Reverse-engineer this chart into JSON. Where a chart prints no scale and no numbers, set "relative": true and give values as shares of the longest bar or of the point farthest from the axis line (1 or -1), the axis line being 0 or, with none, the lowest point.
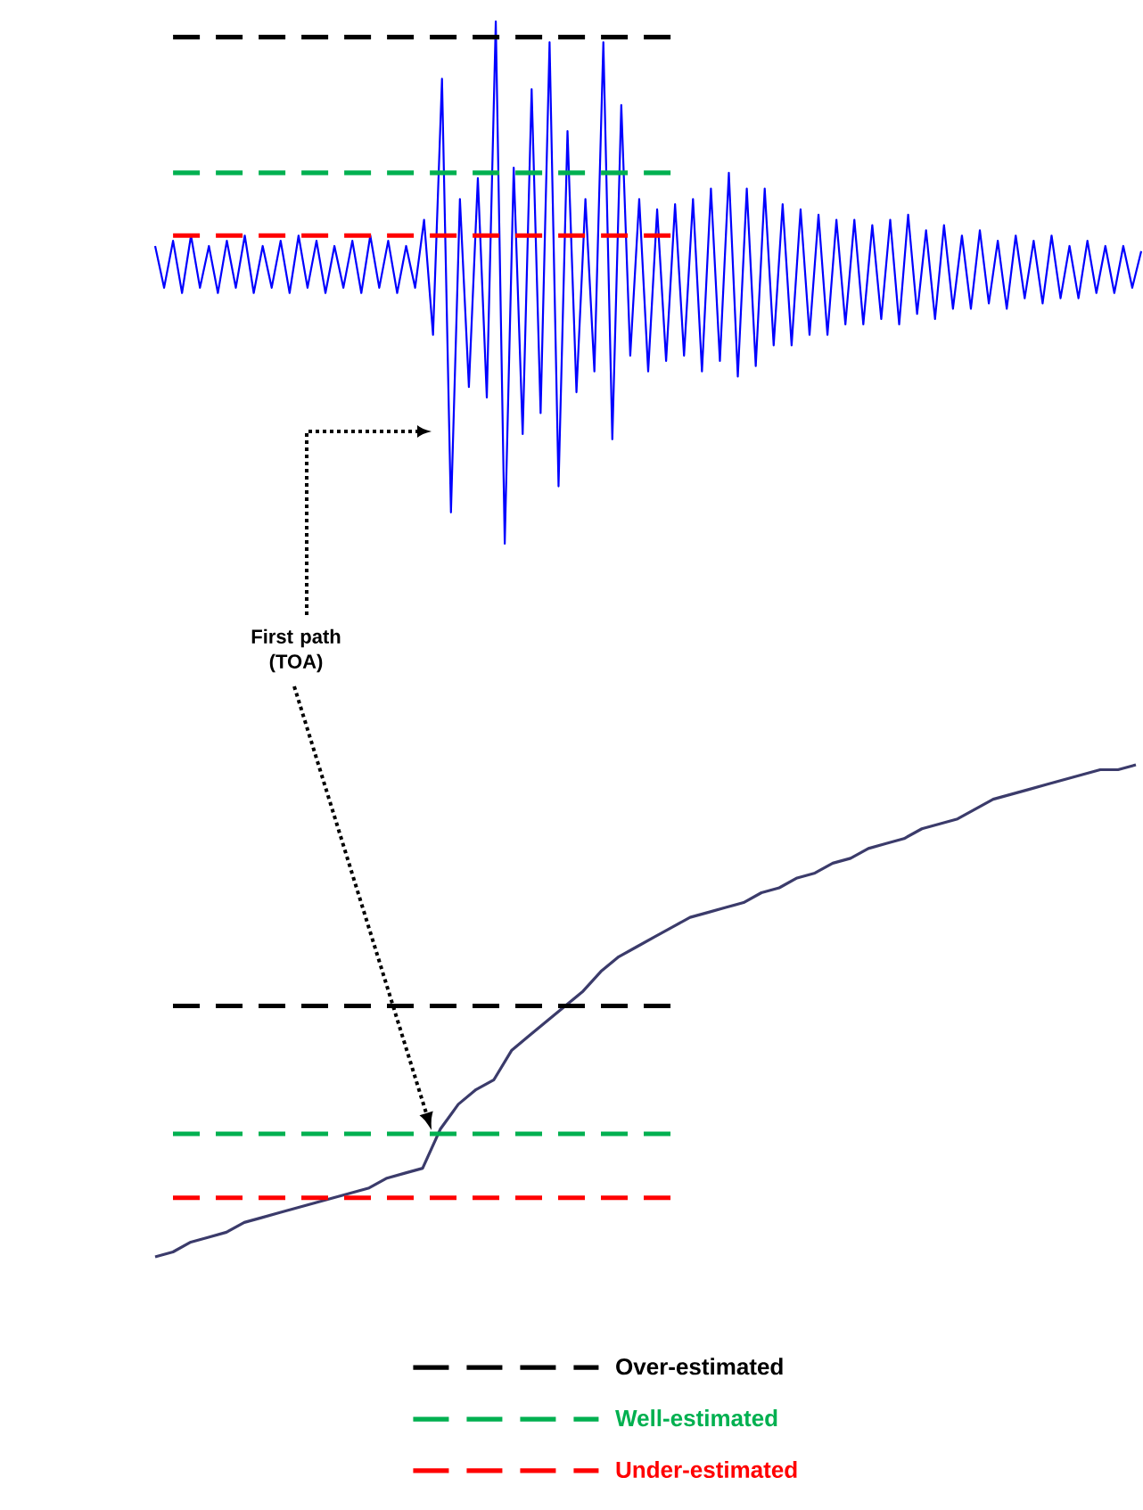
{
  "chart_data": [
    {
      "type": "line",
      "relative": true,
      "categories": [
        null,
        null,
        null,
        null,
        null,
        null,
        null,
        null,
        null,
        null,
        null,
        null,
        null,
        null,
        null,
        null,
        null,
        null,
        null,
        null,
        null,
        null,
        null,
        null,
        null,
        null,
        null,
        null,
        null,
        null,
        null,
        null,
        null,
        null,
        null,
        null,
        null,
        null,
        null,
        null,
        null,
        null,
        null,
        null,
        null,
        null,
        null,
        null,
        null,
        null,
        null,
        null,
        null,
        null,
        null,
        null,
        null,
        null,
        null,
        null,
        null,
        null,
        null,
        null,
        null,
        null,
        null,
        null,
        null,
        null,
        null,
        null,
        null,
        null,
        null,
        null,
        null,
        null,
        null,
        null,
        null,
        null,
        null,
        null,
        null,
        null,
        null,
        null,
        null,
        null,
        null,
        null,
        null,
        null,
        null,
        null,
        null,
        null,
        null,
        null,
        null,
        null,
        null,
        null,
        null,
        null,
        null,
        null,
        null,
        null,
        null
      ],
      "annotations": [
        "First path (TOA)"
      ],
      "series": [
        {
          "color": "#0000ff",
          "values": [
            0.57,
            0.49,
            0.58,
            0.48,
            0.59,
            0.49,
            0.57,
            0.48,
            0.58,
            0.49,
            0.59,
            0.48,
            0.57,
            0.49,
            0.58,
            0.48,
            0.59,
            0.49,
            0.58,
            0.48,
            0.57,
            0.49,
            0.58,
            0.48,
            0.59,
            0.49,
            0.58,
            0.48,
            0.57,
            0.49,
            0.62,
            0.4,
            0.89,
            0.06,
            0.66,
            0.3,
            0.7,
            0.28,
            1.0,
            0.0,
            0.72,
            0.21,
            0.87,
            0.25,
            0.96,
            0.11,
            0.79,
            0.29,
            0.66,
            0.33,
            0.96,
            0.2,
            0.84,
            0.36,
            0.66,
            0.33,
            0.64,
            0.35,
            0.65,
            0.36,
            0.66,
            0.33,
            0.68,
            0.35,
            0.71,
            0.32,
            0.68,
            0.34,
            0.68,
            0.38,
            0.65,
            0.38,
            0.64,
            0.4,
            0.63,
            0.4,
            0.62,
            0.42,
            0.62,
            0.42,
            0.61,
            0.43,
            0.62,
            0.42,
            0.63,
            0.44,
            0.6,
            0.43,
            0.61,
            0.45,
            0.59,
            0.45,
            0.6,
            0.46,
            0.58,
            0.45,
            0.59,
            0.47,
            0.58,
            0.46,
            0.59,
            0.47,
            0.57,
            0.47,
            0.58,
            0.48,
            0.57,
            0.48,
            0.57,
            0.49,
            0.56
          ]
        },
        {
          "color": "#000000",
          "line_style": "dashed",
          "values": [
            null,
            null,
            0.97,
            0.97,
            0.97,
            0.97,
            0.97,
            0.97,
            0.97,
            0.97,
            0.97,
            0.97,
            0.97,
            0.97,
            0.97,
            0.97,
            0.97,
            0.97,
            0.97,
            0.97,
            0.97,
            0.97,
            0.97,
            0.97,
            0.97,
            0.97,
            0.97,
            0.97,
            0.97,
            0.97,
            0.97,
            0.97,
            0.97,
            0.97,
            0.97,
            0.97,
            0.97,
            0.97,
            0.97,
            0.97,
            0.97,
            0.97,
            0.97,
            0.97,
            0.97,
            0.97,
            0.97,
            0.97,
            0.97,
            0.97,
            0.97,
            0.97,
            0.97,
            0.97,
            0.97,
            0.97,
            0.97,
            0.97,
            0.97,
            null,
            null,
            null,
            null,
            null,
            null,
            null,
            null,
            null,
            null,
            null,
            null,
            null,
            null,
            null,
            null,
            null,
            null,
            null,
            null,
            null,
            null,
            null,
            null,
            null,
            null,
            null,
            null,
            null,
            null,
            null,
            null,
            null,
            null,
            null,
            null,
            null,
            null,
            null,
            null,
            null,
            null,
            null,
            null,
            null,
            null,
            null,
            null,
            null,
            null,
            null,
            null
          ]
        },
        {
          "color": "#00b050",
          "line_style": "dashed",
          "values": [
            null,
            null,
            0.71,
            0.71,
            0.71,
            0.71,
            0.71,
            0.71,
            0.71,
            0.71,
            0.71,
            0.71,
            0.71,
            0.71,
            0.71,
            0.71,
            0.71,
            0.71,
            0.71,
            0.71,
            0.71,
            0.71,
            0.71,
            0.71,
            0.71,
            0.71,
            0.71,
            0.71,
            0.71,
            0.71,
            0.71,
            0.71,
            0.71,
            0.71,
            0.71,
            0.71,
            0.71,
            0.71,
            0.71,
            0.71,
            0.71,
            0.71,
            0.71,
            0.71,
            0.71,
            0.71,
            0.71,
            0.71,
            0.71,
            0.71,
            0.71,
            0.71,
            0.71,
            0.71,
            0.71,
            0.71,
            0.71,
            0.71,
            0.71,
            null,
            null,
            null,
            null,
            null,
            null,
            null,
            null,
            null,
            null,
            null,
            null,
            null,
            null,
            null,
            null,
            null,
            null,
            null,
            null,
            null,
            null,
            null,
            null,
            null,
            null,
            null,
            null,
            null,
            null,
            null,
            null,
            null,
            null,
            null,
            null,
            null,
            null,
            null,
            null,
            null,
            null,
            null,
            null,
            null,
            null,
            null,
            null,
            null,
            null,
            null,
            null
          ]
        },
        {
          "color": "#ff0000",
          "line_style": "dashed",
          "values": [
            null,
            null,
            0.59,
            0.59,
            0.59,
            0.59,
            0.59,
            0.59,
            0.59,
            0.59,
            0.59,
            0.59,
            0.59,
            0.59,
            0.59,
            0.59,
            0.59,
            0.59,
            0.59,
            0.59,
            0.59,
            0.59,
            0.59,
            0.59,
            0.59,
            0.59,
            0.59,
            0.59,
            0.59,
            0.59,
            0.59,
            0.59,
            0.59,
            0.59,
            0.59,
            0.59,
            0.59,
            0.59,
            0.59,
            0.59,
            0.59,
            0.59,
            0.59,
            0.59,
            0.59,
            0.59,
            0.59,
            0.59,
            0.59,
            0.59,
            0.59,
            0.59,
            0.59,
            0.59,
            0.59,
            0.59,
            0.59,
            0.59,
            0.59,
            null,
            null,
            null,
            null,
            null,
            null,
            null,
            null,
            null,
            null,
            null,
            null,
            null,
            null,
            null,
            null,
            null,
            null,
            null,
            null,
            null,
            null,
            null,
            null,
            null,
            null,
            null,
            null,
            null,
            null,
            null,
            null,
            null,
            null,
            null,
            null,
            null,
            null,
            null,
            null,
            null,
            null,
            null,
            null,
            null,
            null,
            null,
            null,
            null,
            null,
            null,
            null
          ]
        }
      ]
    },
    {
      "type": "line",
      "relative": true,
      "legend": "bottom",
      "categories": [
        null,
        null,
        null,
        null,
        null,
        null,
        null,
        null,
        null,
        null,
        null,
        null,
        null,
        null,
        null,
        null,
        null,
        null,
        null,
        null,
        null,
        null,
        null,
        null,
        null,
        null,
        null,
        null,
        null,
        null,
        null,
        null,
        null,
        null,
        null,
        null,
        null,
        null,
        null,
        null,
        null,
        null,
        null,
        null,
        null,
        null,
        null,
        null,
        null,
        null,
        null,
        null,
        null,
        null,
        null,
        null
      ],
      "series": [
        {
          "color": "#3b3b6b",
          "values": [
            0.0,
            0.01,
            0.03,
            0.04,
            0.05,
            0.07,
            0.08,
            0.09,
            0.1,
            0.11,
            0.12,
            0.13,
            0.14,
            0.16,
            0.17,
            0.18,
            0.26,
            0.31,
            0.34,
            0.36,
            0.42,
            0.45,
            0.48,
            0.51,
            0.54,
            0.58,
            0.61,
            0.63,
            0.65,
            0.67,
            0.69,
            0.7,
            0.71,
            0.72,
            0.74,
            0.75,
            0.77,
            0.78,
            0.8,
            0.81,
            0.83,
            0.84,
            0.85,
            0.87,
            0.88,
            0.89,
            0.91,
            0.93,
            0.94,
            0.95,
            0.96,
            0.97,
            0.98,
            0.99,
            0.99,
            1.0
          ]
        },
        {
          "name": "Over-estimated",
          "color": "#000000",
          "line_style": "dashed",
          "values": [
            null,
            0.51,
            0.51,
            0.51,
            0.51,
            0.51,
            0.51,
            0.51,
            0.51,
            0.51,
            0.51,
            0.51,
            0.51,
            0.51,
            0.51,
            0.51,
            0.51,
            0.51,
            0.51,
            0.51,
            0.51,
            0.51,
            0.51,
            0.51,
            0.51,
            0.51,
            0.51,
            0.51,
            0.51,
            0.51,
            null,
            null,
            null,
            null,
            null,
            null,
            null,
            null,
            null,
            null,
            null,
            null,
            null,
            null,
            null,
            null,
            null,
            null,
            null,
            null,
            null,
            null,
            null,
            null,
            null,
            null
          ]
        },
        {
          "name": "Well-estimated",
          "color": "#00b050",
          "line_style": "dashed",
          "values": [
            null,
            0.25,
            0.25,
            0.25,
            0.25,
            0.25,
            0.25,
            0.25,
            0.25,
            0.25,
            0.25,
            0.25,
            0.25,
            0.25,
            0.25,
            0.25,
            0.25,
            0.25,
            0.25,
            0.25,
            0.25,
            0.25,
            0.25,
            0.25,
            0.25,
            0.25,
            0.25,
            0.25,
            0.25,
            0.25,
            null,
            null,
            null,
            null,
            null,
            null,
            null,
            null,
            null,
            null,
            null,
            null,
            null,
            null,
            null,
            null,
            null,
            null,
            null,
            null,
            null,
            null,
            null,
            null,
            null,
            null
          ]
        },
        {
          "name": "Under-estimated",
          "color": "#ff0000",
          "line_style": "dashed",
          "values": [
            null,
            0.12,
            0.12,
            0.12,
            0.12,
            0.12,
            0.12,
            0.12,
            0.12,
            0.12,
            0.12,
            0.12,
            0.12,
            0.12,
            0.12,
            0.12,
            0.12,
            0.12,
            0.12,
            0.12,
            0.12,
            0.12,
            0.12,
            0.12,
            0.12,
            0.12,
            0.12,
            0.12,
            0.12,
            0.12,
            null,
            null,
            null,
            null,
            null,
            null,
            null,
            null,
            null,
            null,
            null,
            null,
            null,
            null,
            null,
            null,
            null,
            null,
            null,
            null,
            null,
            null,
            null,
            null,
            null,
            null
          ]
        }
      ]
    }
  ]
}
